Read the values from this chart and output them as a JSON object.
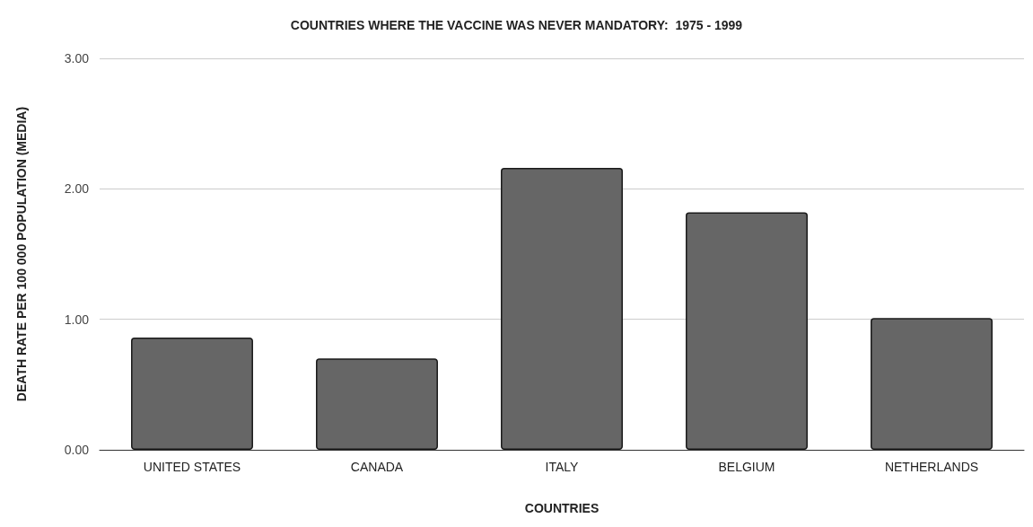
{
  "chart_data": {
    "type": "bar",
    "title": "COUNTRIES WHERE THE VACCINE WAS NEVER MANDATORY:  1975 - 1999",
    "xlabel": "COUNTRIES",
    "ylabel": "DEATH RATE PER 100 000 POPULATION (MEDIA)",
    "categories": [
      "UNITED STATES",
      "CANADA",
      "ITALY",
      "BELGIUM",
      "NETHERLANDS"
    ],
    "values": [
      0.86,
      0.7,
      2.16,
      1.82,
      1.01
    ],
    "color": "#666666",
    "ylim": [
      0,
      3
    ],
    "yticks": [
      {
        "value": 0,
        "label": "0.00"
      },
      {
        "value": 1,
        "label": "1.00"
      },
      {
        "value": 2,
        "label": "2.00"
      },
      {
        "value": 3,
        "label": "3.00"
      }
    ],
    "grid": "y"
  }
}
